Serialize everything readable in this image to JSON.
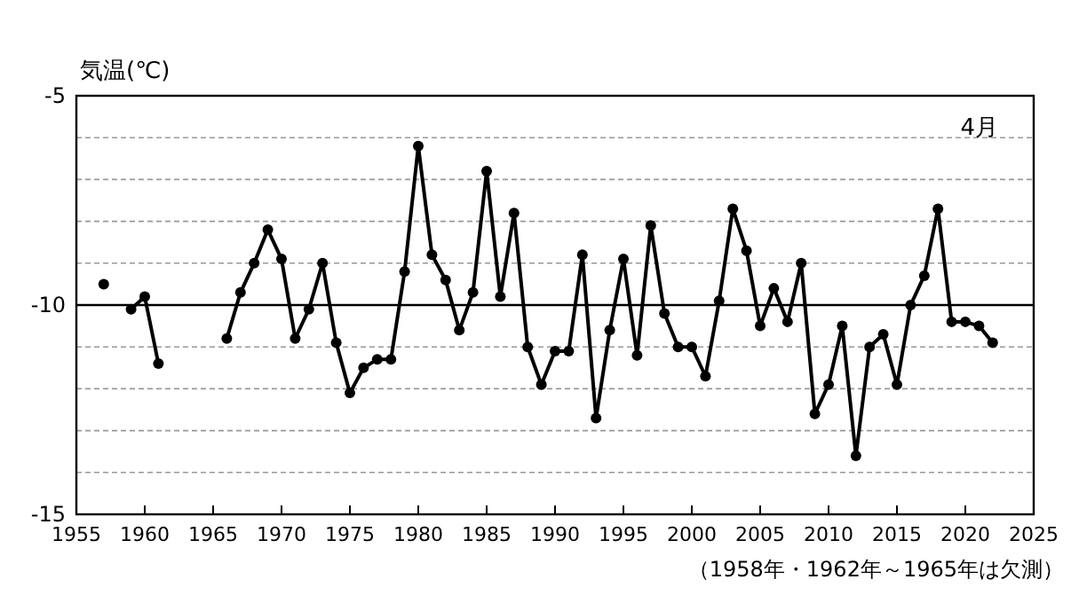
{
  "chart_data": {
    "type": "line",
    "ylabel": "気温(℃)",
    "annotations": [
      "4月",
      "（1958年・1962年～1965年は欠測）"
    ],
    "x": [
      1957,
      1958,
      1959,
      1960,
      1961,
      1962,
      1963,
      1964,
      1965,
      1966,
      1967,
      1968,
      1969,
      1970,
      1971,
      1972,
      1973,
      1974,
      1975,
      1976,
      1977,
      1978,
      1979,
      1980,
      1981,
      1982,
      1983,
      1984,
      1985,
      1986,
      1987,
      1988,
      1989,
      1990,
      1991,
      1992,
      1993,
      1994,
      1995,
      1996,
      1997,
      1998,
      1999,
      2000,
      2001,
      2002,
      2003,
      2004,
      2005,
      2006,
      2007,
      2008,
      2009,
      2010,
      2011,
      2012,
      2013,
      2014,
      2015,
      2016,
      2017,
      2018,
      2019,
      2020,
      2021,
      2022
    ],
    "series": [
      {
        "color": "#000000",
        "values": [
          -9.5,
          null,
          -10.1,
          -9.8,
          -11.4,
          null,
          null,
          null,
          null,
          -10.8,
          -9.7,
          -9.0,
          -8.2,
          -8.9,
          -10.8,
          -10.1,
          -9.0,
          -10.9,
          -12.1,
          -11.5,
          -11.3,
          -11.3,
          -9.2,
          -6.2,
          -8.8,
          -9.4,
          -10.6,
          -9.7,
          -6.8,
          -9.8,
          -7.8,
          -11.0,
          -11.9,
          -11.1,
          -11.1,
          -8.8,
          -12.7,
          -10.6,
          -8.9,
          -11.2,
          -8.1,
          -10.2,
          -11.0,
          -11.0,
          -11.7,
          -9.9,
          -7.7,
          -8.7,
          -10.5,
          -9.6,
          -10.4,
          -9.0,
          -12.6,
          -11.9,
          -10.5,
          -13.6,
          -11.0,
          -10.7,
          -11.9,
          -10.0,
          -9.3,
          -7.7,
          -10.4,
          -10.4,
          -10.5,
          -10.9
        ]
      }
    ],
    "xlim": [
      1955,
      2025
    ],
    "xticks": [
      1955,
      1960,
      1965,
      1970,
      1975,
      1980,
      1985,
      1990,
      1995,
      2000,
      2005,
      2010,
      2015,
      2020,
      2025
    ],
    "ylim": [
      -15,
      -5
    ],
    "yticks": [
      -15,
      {
        "value": -14,
        "label": null
      },
      {
        "value": -13,
        "label": null
      },
      {
        "value": -12,
        "label": null
      },
      {
        "value": -11,
        "label": null
      },
      -10,
      {
        "value": -9,
        "label": null
      },
      {
        "value": -8,
        "label": null
      },
      {
        "value": -7,
        "label": null
      },
      {
        "value": -6,
        "label": null
      },
      -5
    ],
    "grid": "y",
    "marker": "circle",
    "line_style": "solid",
    "ref_lines": [
      {
        "axis": "y",
        "value": -10,
        "color": "#000000",
        "line_style": "solid"
      }
    ]
  }
}
